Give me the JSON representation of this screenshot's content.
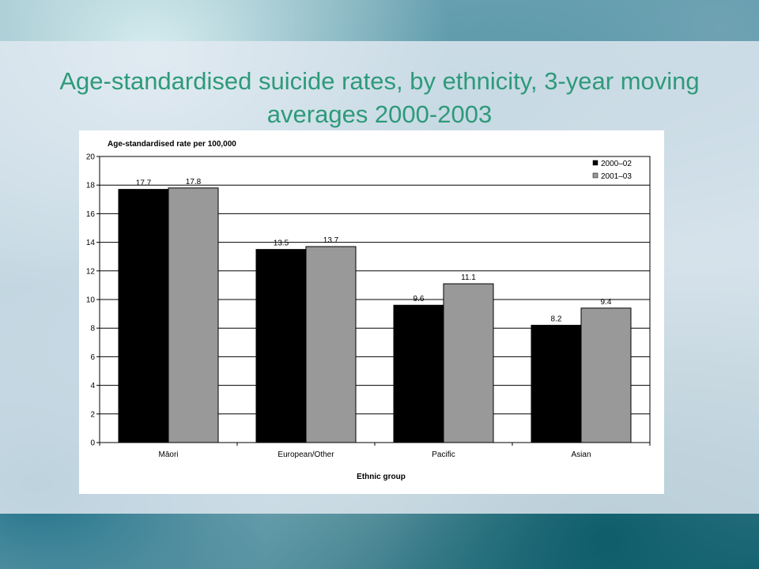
{
  "slide": {
    "title": "Age-standardised suicide rates, by ethnicity, 3-year moving averages 2000-2003"
  },
  "colors": {
    "title": "#2e9a7a",
    "series1": "#000000",
    "series2": "#999999"
  },
  "chart_data": {
    "type": "bar",
    "title": "",
    "ylabel": "Age-standardised rate per 100,000",
    "xlabel": "Ethnic group",
    "categories": [
      "Māori",
      "European/Other",
      "Pacific",
      "Asian"
    ],
    "series": [
      {
        "name": "2000–02",
        "values": [
          17.7,
          13.5,
          9.6,
          8.2
        ],
        "labels": [
          "17.7",
          "13.5",
          "9.6",
          "8.2"
        ]
      },
      {
        "name": "2001–03",
        "values": [
          17.8,
          13.7,
          11.1,
          9.4
        ],
        "labels": [
          "17.8",
          "13.7",
          "11.1",
          "9.4"
        ]
      }
    ],
    "ylim": [
      0,
      20
    ],
    "yticks": [
      "0",
      "2",
      "4",
      "6",
      "8",
      "10",
      "12",
      "14",
      "16",
      "18",
      "20"
    ],
    "grid": true,
    "legend": "top-right"
  }
}
